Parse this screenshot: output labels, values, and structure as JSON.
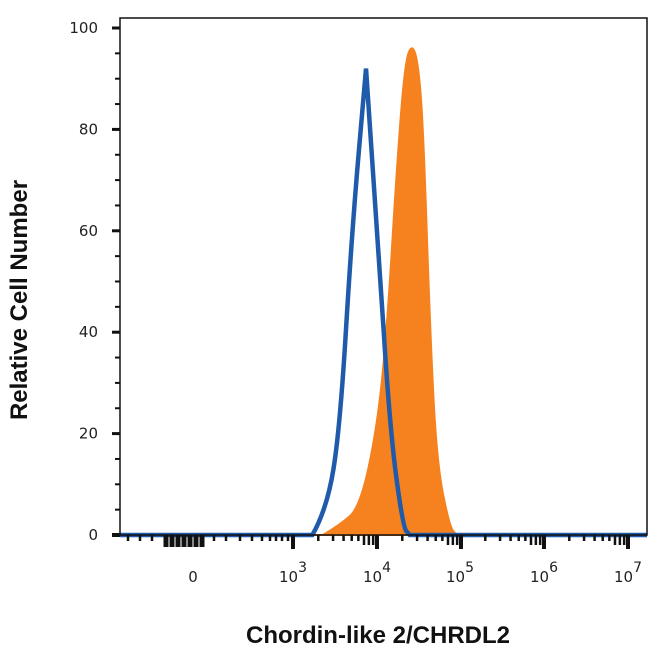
{
  "chart_data": {
    "type": "area",
    "title": "",
    "xlabel": "Chordin-like 2/CHRDL2",
    "ylabel": "Relative Cell Number",
    "x_scale": "biexponential (log decades)",
    "x_ticks": [
      {
        "label": "0",
        "exp": ""
      },
      {
        "label": "10",
        "exp": "3"
      },
      {
        "label": "10",
        "exp": "4"
      },
      {
        "label": "10",
        "exp": "5"
      },
      {
        "label": "10",
        "exp": "6"
      },
      {
        "label": "10",
        "exp": "7"
      }
    ],
    "y_ticks": [
      "0",
      "20",
      "40",
      "60",
      "80",
      "100"
    ],
    "ylim": [
      0,
      100
    ],
    "grid": false,
    "legend": "none",
    "series": [
      {
        "style": "filled",
        "color": "#F5821F",
        "x": [
          2270,
          3630,
          6270,
          10000,
          13100,
          17300,
          21500,
          26100,
          31000,
          35600,
          42900,
          51600,
          73500,
          89000
        ],
        "y": [
          0,
          2,
          5.5,
          21,
          40,
          73,
          93,
          97,
          93,
          80,
          40,
          14,
          1.5,
          0
        ]
      },
      {
        "style": "line",
        "color": "#1F5BAA",
        "x": [
          1700,
          2530,
          3630,
          5030,
          7400,
          10200,
          14200,
          20400,
          24500
        ],
        "y": [
          0,
          5,
          21,
          60,
          92,
          59,
          21,
          1.5,
          0
        ]
      }
    ]
  }
}
